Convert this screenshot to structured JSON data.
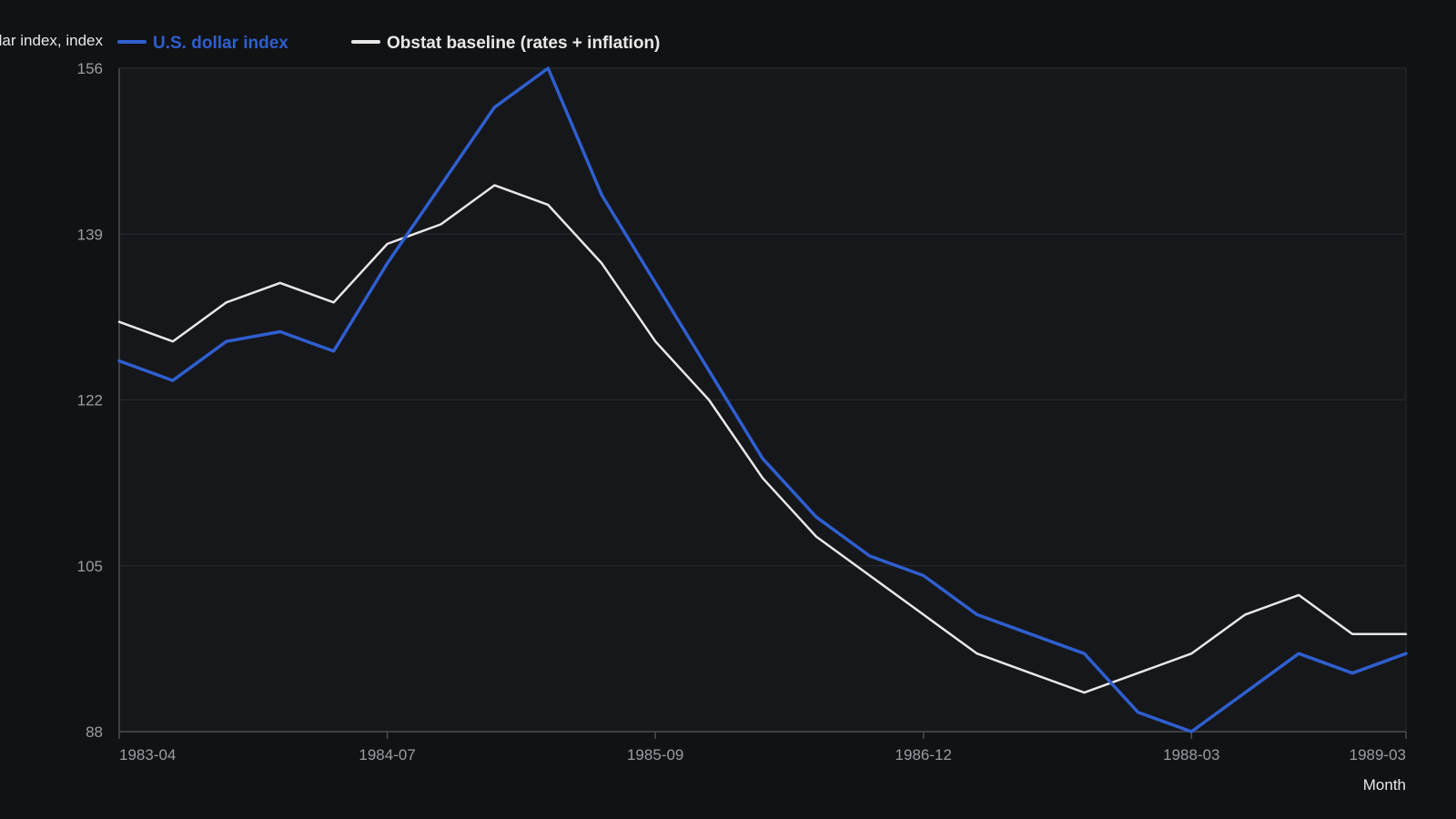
{
  "chart_data": {
    "type": "line",
    "title": "",
    "ylabel": "U.S. dollar index, index",
    "xlabel": "Month",
    "ylim": [
      88,
      156
    ],
    "yticks": [
      "156",
      "139",
      "122",
      "105",
      "88"
    ],
    "x": [
      "1983-04",
      "1983-07",
      "1983-10",
      "1984-01",
      "1984-04",
      "1984-07",
      "1984-10",
      "1985-01",
      "1985-03",
      "1985-06",
      "1985-09",
      "1985-12",
      "1986-03",
      "1986-06",
      "1986-09",
      "1986-12",
      "1987-03",
      "1987-06",
      "1987-09",
      "1987-12",
      "1988-03",
      "1988-06",
      "1988-09",
      "1988-12",
      "1989-03"
    ],
    "xticks": [
      "1983-04",
      "1984-07",
      "1985-09",
      "1986-12",
      "1988-03",
      "1989-03"
    ],
    "series": [
      {
        "name": "U.S. dollar index",
        "color": "#2f5fd0",
        "values": [
          126,
          124,
          128,
          129,
          127,
          136,
          144,
          152,
          156,
          143,
          134,
          125,
          116,
          110,
          106,
          104,
          100,
          98,
          96,
          90,
          88,
          92,
          96,
          94,
          96
        ]
      },
      {
        "name": "Obstat baseline (rates + inflation)",
        "color": "#e8e8e8",
        "values": [
          130,
          128,
          132,
          134,
          132,
          138,
          140,
          144,
          142,
          136,
          128,
          122,
          114,
          108,
          104,
          100,
          96,
          94,
          92,
          94,
          96,
          100,
          102,
          98,
          98
        ]
      }
    ],
    "grid": true,
    "legend_position": "top-left"
  }
}
